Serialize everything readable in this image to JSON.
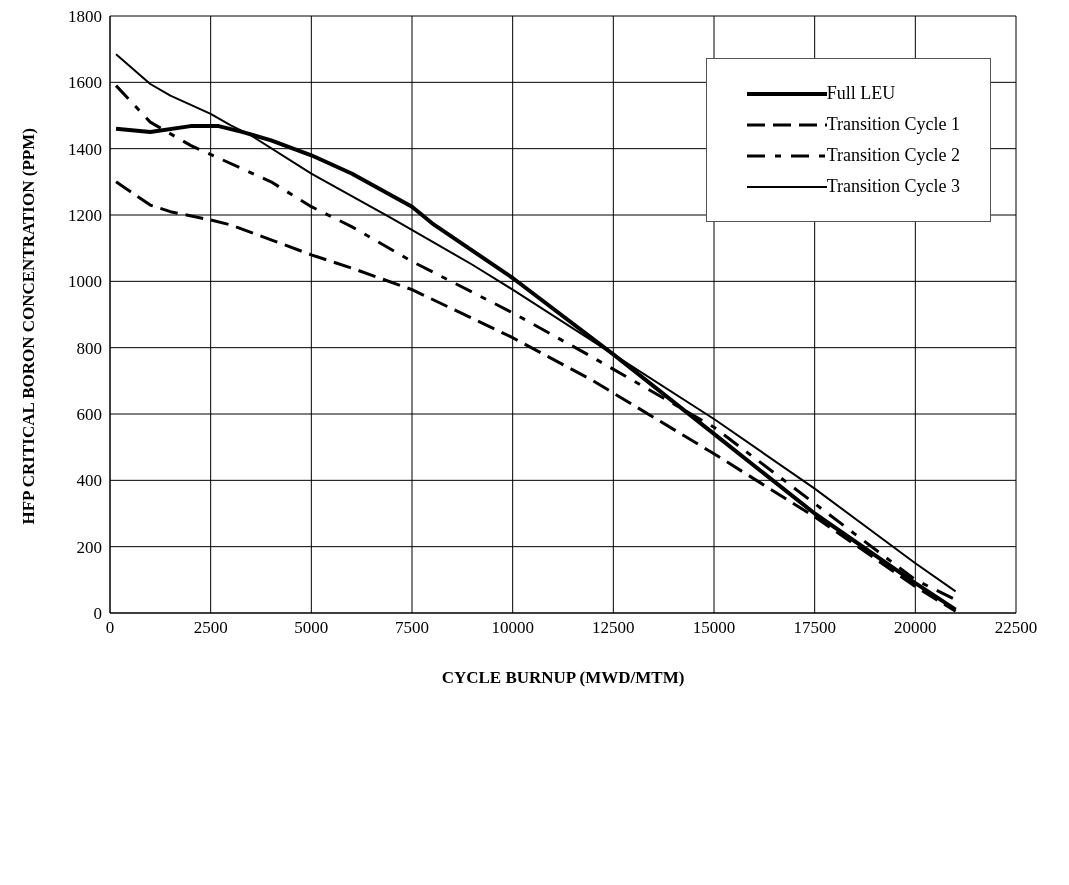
{
  "chart_data": {
    "type": "line",
    "xlabel": "CYCLE BURNUP (MWD/MTM)",
    "ylabel": "HFP CRITICAL BORON CONCENTRATION (PPM)",
    "xlim": [
      0,
      22500
    ],
    "xticks": [
      0,
      2500,
      5000,
      7500,
      10000,
      12500,
      15000,
      17500,
      20000,
      22500
    ],
    "ylim": [
      0,
      1800
    ],
    "yticks": [
      0,
      200,
      400,
      600,
      800,
      1000,
      1200,
      1400,
      1600,
      1800
    ],
    "grid": true,
    "legend": "top right",
    "marker": "none",
    "series": [
      {
        "name": "Full LEU",
        "color": "#000000",
        "line_style": "solid",
        "x": [
          150,
          1000,
          2000,
          2700,
          3300,
          4000,
          5000,
          6000,
          7500,
          8000,
          10000,
          12500,
          15000,
          17500,
          20000,
          21000
        ],
        "values": [
          1460,
          1450,
          1468,
          1468,
          1450,
          1425,
          1380,
          1325,
          1225,
          1175,
          1010,
          780,
          540,
          300,
          90,
          10
        ]
      },
      {
        "name": "Transition Cycle 1",
        "color": "#000000",
        "line_style": "dashed",
        "x": [
          150,
          1000,
          1500,
          2500,
          3000,
          4000,
          5000,
          6000,
          7500,
          10000,
          12000,
          15000,
          17500,
          20000,
          21000
        ],
        "values": [
          1300,
          1230,
          1210,
          1185,
          1170,
          1125,
          1080,
          1040,
          975,
          830,
          700,
          480,
          290,
          80,
          5
        ]
      },
      {
        "name": "Transition Cycle 2",
        "color": "#000000",
        "line_style": "dashed",
        "x": [
          150,
          1000,
          2000,
          4000,
          5000,
          6000,
          7500,
          10000,
          12000,
          15000,
          17500,
          20000,
          21000
        ],
        "values": [
          1590,
          1480,
          1410,
          1300,
          1225,
          1165,
          1060,
          905,
          770,
          560,
          330,
          100,
          40
        ]
      },
      {
        "name": "Transition Cycle 3",
        "color": "#000000",
        "line_style": "solid",
        "x": [
          150,
          1000,
          1500,
          2500,
          3000,
          3500,
          5000,
          7000,
          9000,
          10000,
          12500,
          15000,
          17500,
          20000,
          21000
        ],
        "values": [
          1685,
          1595,
          1560,
          1505,
          1470,
          1440,
          1325,
          1190,
          1050,
          975,
          780,
          585,
          375,
          150,
          65
        ]
      }
    ]
  }
}
